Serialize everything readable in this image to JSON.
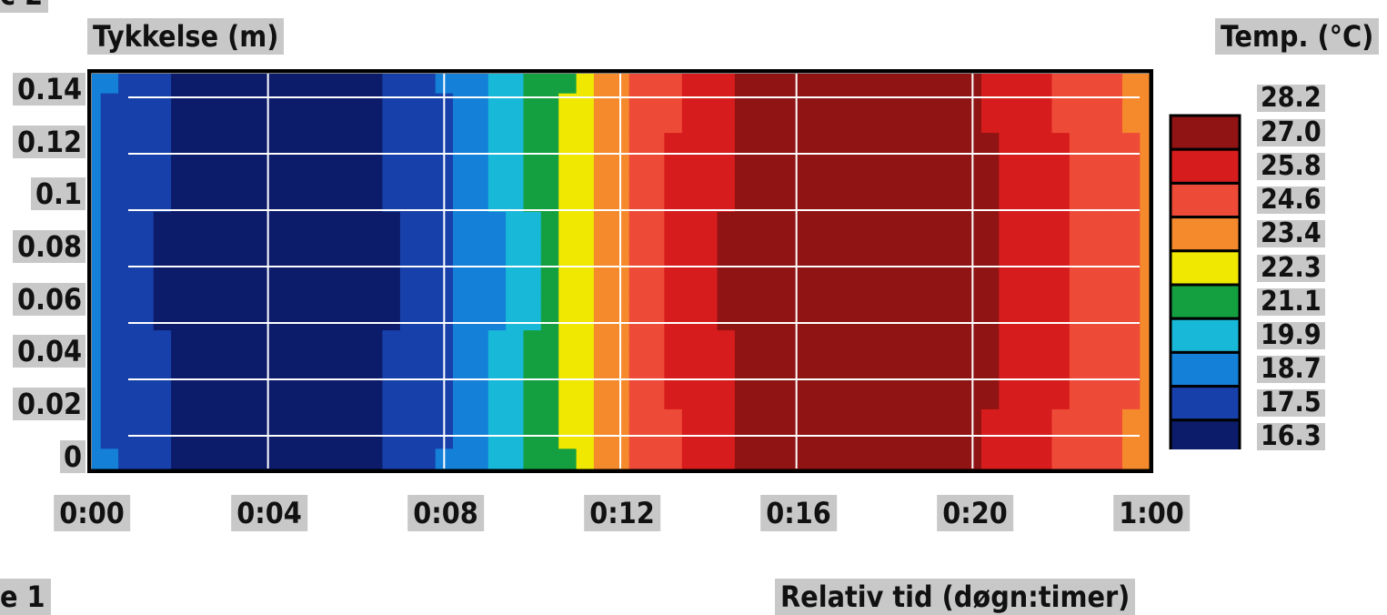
{
  "chart_data": {
    "type": "heatmap",
    "ylabel": "Tykkelse (m)",
    "xlabel": "Relativ tid (døgn:timer)",
    "colorbar_label": "Temp. (°C)",
    "x_ticks": [
      "0:00",
      "0:04",
      "0:08",
      "0:12",
      "0:16",
      "0:20",
      "1:00"
    ],
    "y_ticks": [
      "0.14",
      "0.12",
      "0.1",
      "0.08",
      "0.06",
      "0.04",
      "0.02",
      "0"
    ],
    "xlim_hours": [
      0,
      24
    ],
    "ylim": [
      0,
      0.14
    ],
    "colorbar_ticks": [
      "28.2",
      "27.0",
      "25.8",
      "24.6",
      "23.4",
      "22.3",
      "21.1",
      "19.9",
      "18.7",
      "17.5",
      "16.3"
    ],
    "color_levels": [
      {
        "min": 16.3,
        "max": 17.5,
        "color": "#0c1c6a"
      },
      {
        "min": 17.5,
        "max": 18.7,
        "color": "#1740aa"
      },
      {
        "min": 18.7,
        "max": 19.9,
        "color": "#1480d8"
      },
      {
        "min": 19.9,
        "max": 21.1,
        "color": "#18b8d8"
      },
      {
        "min": 21.1,
        "max": 22.3,
        "color": "#14a040"
      },
      {
        "min": 22.3,
        "max": 23.4,
        "color": "#f0e800"
      },
      {
        "min": 23.4,
        "max": 24.6,
        "color": "#f58a2c"
      },
      {
        "min": 24.6,
        "max": 25.8,
        "color": "#ee4a38"
      },
      {
        "min": 25.8,
        "max": 27.0,
        "color": "#d61c1c"
      },
      {
        "min": 27.0,
        "max": 28.2,
        "color": "#901414"
      }
    ],
    "columns_hours_to_temp": [
      [
        0.0,
        18.9
      ],
      [
        0.4,
        18.6
      ],
      [
        0.8,
        18.2
      ],
      [
        1.2,
        17.9
      ],
      [
        1.6,
        17.6
      ],
      [
        2.0,
        17.3
      ],
      [
        2.4,
        17.1
      ],
      [
        2.8,
        16.9
      ],
      [
        3.2,
        16.8
      ],
      [
        3.6,
        16.7
      ],
      [
        4.0,
        16.6
      ],
      [
        4.4,
        16.6
      ],
      [
        4.8,
        16.7
      ],
      [
        5.2,
        16.8
      ],
      [
        5.6,
        16.9
      ],
      [
        6.0,
        17.1
      ],
      [
        6.4,
        17.3
      ],
      [
        6.8,
        17.6
      ],
      [
        7.2,
        17.9
      ],
      [
        7.6,
        18.2
      ],
      [
        8.0,
        18.6
      ],
      [
        8.4,
        19.0
      ],
      [
        8.8,
        19.5
      ],
      [
        9.2,
        20.0
      ],
      [
        9.6,
        20.6
      ],
      [
        10.0,
        21.2
      ],
      [
        10.4,
        21.8
      ],
      [
        10.8,
        22.4
      ],
      [
        11.2,
        23.0
      ],
      [
        11.6,
        23.6
      ],
      [
        12.0,
        24.2
      ],
      [
        12.4,
        24.8
      ],
      [
        12.8,
        25.3
      ],
      [
        13.2,
        25.8
      ],
      [
        13.6,
        26.2
      ],
      [
        14.0,
        26.6
      ],
      [
        14.4,
        26.9
      ],
      [
        14.8,
        27.2
      ],
      [
        15.2,
        27.4
      ],
      [
        15.6,
        27.6
      ],
      [
        16.0,
        27.7
      ],
      [
        16.4,
        27.8
      ],
      [
        16.8,
        27.9
      ],
      [
        17.2,
        27.9
      ],
      [
        17.6,
        27.9
      ],
      [
        18.0,
        27.9
      ],
      [
        18.4,
        27.8
      ],
      [
        18.8,
        27.7
      ],
      [
        19.2,
        27.6
      ],
      [
        19.6,
        27.4
      ],
      [
        20.0,
        27.2
      ],
      [
        20.4,
        27.0
      ],
      [
        20.8,
        26.7
      ],
      [
        21.2,
        26.4
      ],
      [
        21.6,
        26.1
      ],
      [
        22.0,
        25.8
      ],
      [
        22.4,
        25.5
      ],
      [
        22.8,
        25.2
      ],
      [
        23.2,
        24.9
      ],
      [
        23.6,
        24.6
      ],
      [
        24.0,
        24.4
      ]
    ]
  },
  "corner_labels": {
    "bottom_left": "e 1",
    "top_left": "c 2"
  }
}
